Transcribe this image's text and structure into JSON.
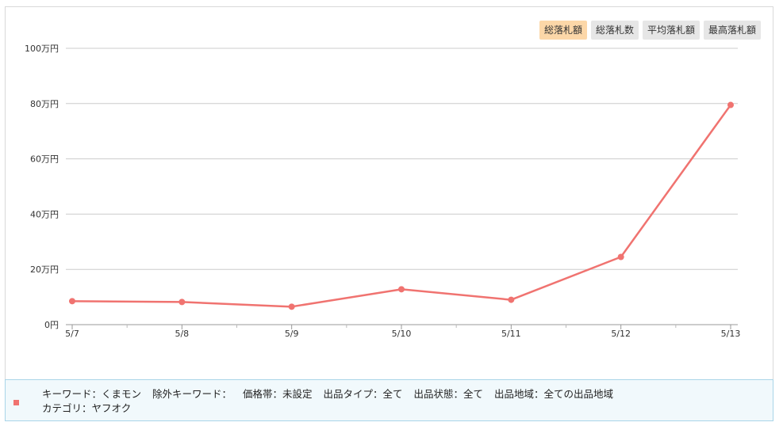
{
  "toggles": [
    {
      "label": "総落札額",
      "active": true
    },
    {
      "label": "総落札数",
      "active": false
    },
    {
      "label": "平均落札額",
      "active": false
    },
    {
      "label": "最高落札額",
      "active": false
    }
  ],
  "chart_data": {
    "type": "line",
    "categories": [
      "5/7",
      "5/8",
      "5/9",
      "5/10",
      "5/11",
      "5/12",
      "5/13"
    ],
    "y_ticks": [
      "0円",
      "20万円",
      "40万円",
      "60万円",
      "80万円",
      "100万円"
    ],
    "ylim": [
      0,
      1000000
    ],
    "series": [
      {
        "values": [
          85000,
          82000,
          65000,
          128000,
          90000,
          245000,
          795000
        ]
      }
    ],
    "grid": true,
    "color": "#f07370"
  },
  "filters": {
    "keyword": "キーワード：くまモン",
    "exclude_keyword": "除外キーワード：",
    "price_range": "価格帯：未設定",
    "listing_type": "出品タイプ：全て",
    "condition": "出品状態：全て",
    "region": "出品地域：全ての出品地域",
    "category": "カテゴリ：ヤフオク"
  },
  "colors": {
    "line": "#f07370",
    "grid": "#cccccc",
    "active_toggle": "#fcd7a8",
    "footer_bg": "#f1f9fc"
  }
}
